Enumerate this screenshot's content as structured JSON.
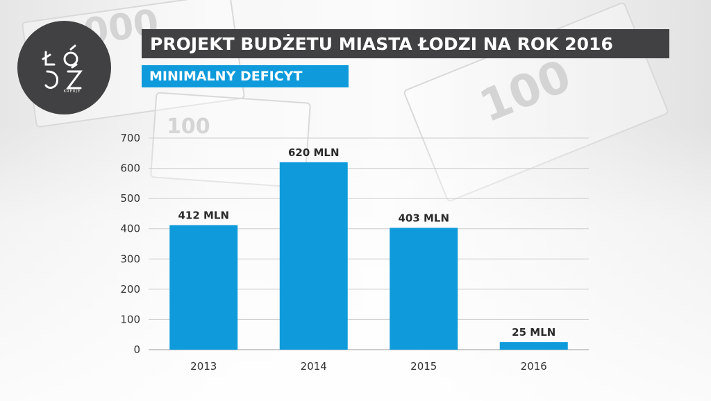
{
  "title": "PROJEKT BUDŻETU MIASTA ŁODZI NA ROK 2016",
  "subtitle": "MINIMALNY DEFICYT",
  "logo": {
    "text": "ŁÓDŹ",
    "tagline": "KREUJE"
  },
  "colors": {
    "bar": "#0f9bdb",
    "title_bg": "#414042",
    "subtitle_bg": "#0f9bdb",
    "grid": "#cccccc"
  },
  "chart_data": {
    "type": "bar",
    "categories": [
      "2013",
      "2014",
      "2015",
      "2016"
    ],
    "values": [
      412,
      620,
      403,
      25
    ],
    "data_labels": [
      "412 MLN",
      "620 MLN",
      "403 MLN",
      "25 MLN"
    ],
    "unit": "MLN",
    "ylim": [
      0,
      700
    ],
    "yticks": [
      0,
      100,
      200,
      300,
      400,
      500,
      600,
      700
    ],
    "grid": true,
    "legend": "none",
    "xlabel": "",
    "ylabel": ""
  }
}
